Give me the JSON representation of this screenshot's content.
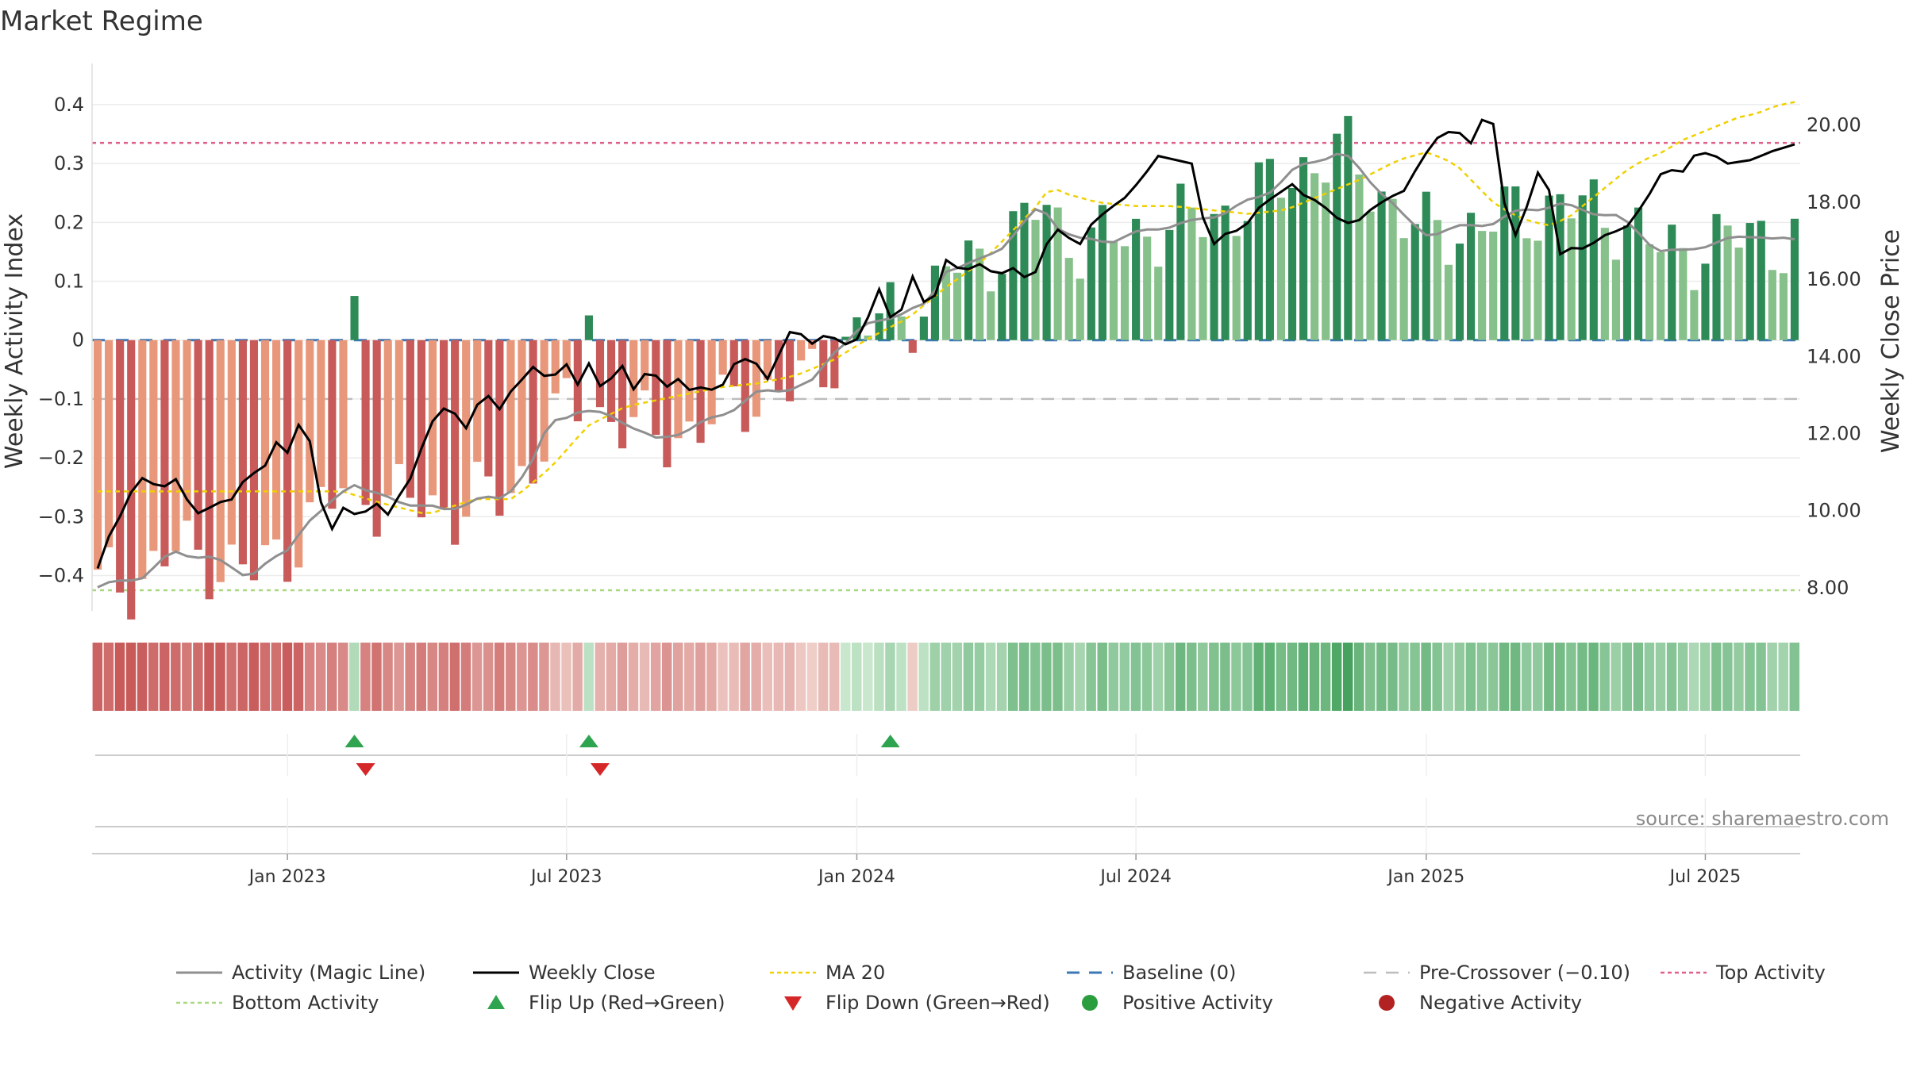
{
  "chart_data": {
    "type": "bar",
    "title": "Market Regime",
    "ylabel": "Weekly Activity Index",
    "y2label": "Weekly Close Price",
    "ylim": [
      -0.46,
      0.47
    ],
    "y2lim": [
      7.4,
      21.6
    ],
    "y_ticks": [
      "0.4",
      "0.3",
      "0.2",
      "0.1",
      "0",
      "−0.1",
      "−0.2",
      "−0.3",
      "−0.4"
    ],
    "y_tick_values": [
      0.4,
      0.3,
      0.2,
      0.1,
      0,
      -0.1,
      -0.2,
      -0.3,
      -0.4
    ],
    "y2_ticks": [
      "20.00",
      "18.00",
      "16.00",
      "14.00",
      "12.00",
      "10.00",
      "8.00"
    ],
    "y2_tick_values": [
      20,
      18,
      16,
      14,
      12,
      10,
      8
    ],
    "x_ticks": [
      "Jan 2023",
      "Jul 2023",
      "Jan 2024",
      "Jul 2024",
      "Jan 2025",
      "Jul 2025"
    ],
    "x_tick_weeks": [
      17,
      42,
      68,
      93,
      119,
      144
    ],
    "weeks": 153,
    "reference_lines": {
      "top": 0.335,
      "bottom": -0.425,
      "pre_crossover": -0.1,
      "baseline": 0
    },
    "activity_knots": [
      [
        0,
        -0.42
      ],
      [
        5,
        -0.4
      ],
      [
        8,
        -0.36
      ],
      [
        12,
        -0.37
      ],
      [
        16,
        -0.4
      ],
      [
        20,
        -0.36
      ],
      [
        22,
        -0.31
      ],
      [
        24,
        -0.29
      ],
      [
        27,
        -0.24
      ],
      [
        29,
        -0.26
      ],
      [
        31,
        -0.27
      ],
      [
        34,
        -0.28
      ],
      [
        37,
        -0.29
      ],
      [
        40,
        -0.27
      ],
      [
        43,
        -0.27
      ],
      [
        46,
        -0.21
      ],
      [
        48,
        -0.14
      ],
      [
        51,
        -0.12
      ],
      [
        55,
        -0.13
      ],
      [
        59,
        -0.17
      ],
      [
        63,
        -0.15
      ],
      [
        67,
        -0.12
      ],
      [
        70,
        -0.09
      ],
      [
        74,
        -0.08
      ],
      [
        76,
        -0.07
      ],
      [
        78,
        -0.02
      ],
      [
        81,
        0.02
      ],
      [
        84,
        0.04
      ],
      [
        86,
        0.05
      ],
      [
        88,
        0.06
      ],
      [
        90,
        0.12
      ],
      [
        93,
        0.13
      ],
      [
        96,
        0.16
      ],
      [
        99,
        0.21
      ],
      [
        100,
        0.23
      ],
      [
        102,
        0.19
      ],
      [
        104,
        0.17
      ],
      [
        108,
        0.17
      ],
      [
        112,
        0.19
      ],
      [
        116,
        0.2
      ],
      [
        120,
        0.22
      ],
      [
        124,
        0.25
      ],
      [
        127,
        0.29
      ],
      [
        130,
        0.31
      ],
      [
        132,
        0.32
      ],
      [
        135,
        0.27
      ],
      [
        137,
        0.24
      ],
      [
        139,
        0.2
      ],
      [
        141,
        0.18
      ],
      [
        144,
        0.19
      ],
      [
        148,
        0.2
      ],
      [
        151,
        0.22
      ],
      [
        155,
        0.23
      ],
      [
        158,
        0.22
      ],
      [
        161,
        0.21
      ],
      [
        163,
        0.19
      ],
      [
        165,
        0.16
      ],
      [
        166,
        0.15
      ],
      [
        168,
        0.15
      ],
      [
        170,
        0.16
      ],
      [
        173,
        0.17
      ],
      [
        176,
        0.18
      ],
      [
        178,
        0.17
      ],
      [
        180,
        0.17
      ]
    ],
    "close_knots": [
      [
        0,
        8.5
      ],
      [
        1,
        9.2
      ],
      [
        3,
        10.0
      ],
      [
        5,
        11.0
      ],
      [
        6,
        10.4
      ],
      [
        7,
        10.9
      ],
      [
        8,
        10.6
      ],
      [
        9,
        10.9
      ],
      [
        11,
        10.1
      ],
      [
        12,
        9.9
      ],
      [
        14,
        10.2
      ],
      [
        16,
        10.3
      ],
      [
        18,
        11.1
      ],
      [
        19,
        10.8
      ],
      [
        21,
        11.8
      ],
      [
        22,
        11.3
      ],
      [
        24,
        12.4
      ],
      [
        25,
        11.8
      ],
      [
        27,
        9.4
      ],
      [
        28,
        9.6
      ],
      [
        29,
        10.1
      ],
      [
        30,
        9.9
      ],
      [
        32,
        10.0
      ],
      [
        33,
        10.2
      ],
      [
        35,
        9.7
      ],
      [
        36,
        11.0
      ],
      [
        37,
        10.8
      ],
      [
        39,
        12.2
      ],
      [
        41,
        12.7
      ],
      [
        42,
        12.6
      ],
      [
        43,
        11.8
      ],
      [
        44,
        12.6
      ],
      [
        46,
        13.0
      ],
      [
        47,
        12.5
      ],
      [
        49,
        13.2
      ],
      [
        51,
        13.6
      ],
      [
        52,
        14.0
      ],
      [
        53,
        13.2
      ],
      [
        55,
        13.9
      ],
      [
        57,
        13.1
      ],
      [
        58,
        13.9
      ],
      [
        59,
        13.2
      ],
      [
        61,
        13.5
      ],
      [
        62,
        13.8
      ],
      [
        63,
        13.1
      ],
      [
        65,
        13.7
      ],
      [
        67,
        13.2
      ],
      [
        69,
        13.5
      ],
      [
        70,
        13.0
      ],
      [
        71,
        13.2
      ],
      [
        72,
        13.1
      ],
      [
        74,
        13.3
      ],
      [
        75,
        13.8
      ],
      [
        77,
        14.0
      ],
      [
        79,
        13.4
      ],
      [
        81,
        14.4
      ],
      [
        82,
        14.8
      ],
      [
        84,
        14.3
      ],
      [
        86,
        14.6
      ],
      [
        88,
        14.3
      ],
      [
        90,
        14.5
      ],
      [
        92,
        15.8
      ],
      [
        94,
        14.7
      ],
      [
        96,
        16.1
      ],
      [
        98,
        15.1
      ],
      [
        100,
        16.5
      ],
      [
        102,
        16.2
      ],
      [
        104,
        16.4
      ],
      [
        106,
        16.1
      ],
      [
        108,
        16.3
      ],
      [
        110,
        15.9
      ],
      [
        112,
        17.0
      ],
      [
        114,
        17.5
      ],
      [
        115,
        16.6
      ],
      [
        117,
        17.4
      ],
      [
        119,
        17.8
      ],
      [
        121,
        18.1
      ],
      [
        123,
        18.6
      ],
      [
        125,
        19.2
      ],
      [
        127,
        19.1
      ],
      [
        129,
        19.0
      ],
      [
        131,
        16.8
      ],
      [
        133,
        17.2
      ],
      [
        135,
        17.3
      ],
      [
        137,
        17.9
      ],
      [
        139,
        18.2
      ],
      [
        141,
        18.5
      ],
      [
        142,
        18.2
      ],
      [
        144,
        18.0
      ],
      [
        146,
        17.6
      ],
      [
        148,
        17.4
      ],
      [
        150,
        17.8
      ],
      [
        152,
        18.1
      ],
      [
        154,
        18.3
      ],
      [
        156,
        19.1
      ],
      [
        158,
        19.7
      ],
      [
        160,
        19.9
      ],
      [
        162,
        19.5
      ],
      [
        164,
        20.6
      ],
      [
        165,
        19.4
      ],
      [
        166,
        17.6
      ],
      [
        167,
        17.1
      ],
      [
        168,
        17.5
      ],
      [
        169,
        18.4
      ],
      [
        170,
        18.9
      ],
      [
        171,
        18.4
      ],
      [
        172,
        16.8
      ],
      [
        173,
        16.4
      ],
      [
        174,
        17.0
      ],
      [
        175,
        16.8
      ],
      [
        176,
        16.9
      ],
      [
        178,
        17.2
      ],
      [
        180,
        17.3
      ],
      [
        182,
        17.9
      ],
      [
        184,
        18.6
      ],
      [
        185,
        19.2
      ],
      [
        186,
        18.5
      ],
      [
        188,
        19.2
      ],
      [
        190,
        19.3
      ],
      [
        192,
        19.0
      ],
      [
        195,
        19.1
      ],
      [
        197,
        19.3
      ],
      [
        200,
        19.5
      ]
    ],
    "ma20_knots": [
      [
        0,
        10.5
      ],
      [
        20,
        10.5
      ],
      [
        26,
        10.5
      ],
      [
        30,
        10.2
      ],
      [
        35,
        9.9
      ],
      [
        40,
        10.3
      ],
      [
        44,
        10.3
      ],
      [
        48,
        11.1
      ],
      [
        52,
        12.2
      ],
      [
        56,
        12.7
      ],
      [
        62,
        13.0
      ],
      [
        66,
        13.2
      ],
      [
        70,
        13.3
      ],
      [
        74,
        13.5
      ],
      [
        78,
        13.9
      ],
      [
        82,
        14.5
      ],
      [
        86,
        15.0
      ],
      [
        90,
        15.8
      ],
      [
        94,
        16.5
      ],
      [
        96,
        17.0
      ],
      [
        98,
        17.5
      ],
      [
        100,
        18.0
      ],
      [
        101,
        18.4
      ],
      [
        103,
        18.2
      ],
      [
        106,
        18.0
      ],
      [
        110,
        17.9
      ],
      [
        114,
        17.9
      ],
      [
        118,
        17.8
      ],
      [
        122,
        17.7
      ],
      [
        126,
        17.8
      ],
      [
        130,
        18.2
      ],
      [
        134,
        18.6
      ],
      [
        138,
        19.1
      ],
      [
        141,
        19.3
      ],
      [
        144,
        19.0
      ],
      [
        146,
        18.5
      ],
      [
        148,
        18.0
      ],
      [
        150,
        17.7
      ],
      [
        152,
        17.5
      ],
      [
        154,
        17.4
      ],
      [
        156,
        17.6
      ],
      [
        158,
        18.0
      ],
      [
        160,
        18.4
      ],
      [
        162,
        18.8
      ],
      [
        164,
        19.1
      ],
      [
        166,
        19.3
      ],
      [
        168,
        19.6
      ],
      [
        170,
        19.8
      ],
      [
        172,
        20.0
      ],
      [
        174,
        20.2
      ],
      [
        176,
        20.3
      ],
      [
        178,
        20.5
      ],
      [
        180,
        20.6
      ]
    ]
  },
  "legend": {
    "items": [
      {
        "label": "Activity (Magic Line)"
      },
      {
        "label": "Weekly Close"
      },
      {
        "label": "MA 20"
      },
      {
        "label": "Baseline (0)"
      },
      {
        "label": "Pre-Crossover (−0.10)"
      },
      {
        "label": "Top Activity"
      },
      {
        "label": "Bottom Activity"
      },
      {
        "label": "Flip Up (Red→Green)"
      },
      {
        "label": "Flip Down (Green→Red)"
      },
      {
        "label": "Positive Activity"
      },
      {
        "label": "Negative Activity"
      }
    ]
  },
  "source": "source: sharemaestro.com",
  "colors": {
    "neg_dark": "#c85a5a",
    "neg_light": "#e8977a",
    "pos_dark": "#2e8b57",
    "pos_light": "#86c08a",
    "activity_line": "#8f8f8f",
    "close_line": "#000000",
    "ma20": "#f0d000",
    "baseline": "#3b78b5",
    "pre_crossover": "#bdbdbd",
    "top": "#e0608a",
    "bottom": "#a8d880",
    "flip_up": "#2ea44f",
    "flip_down": "#d62728",
    "pos_marker": "#2a9d3f",
    "neg_marker": "#b22222"
  }
}
